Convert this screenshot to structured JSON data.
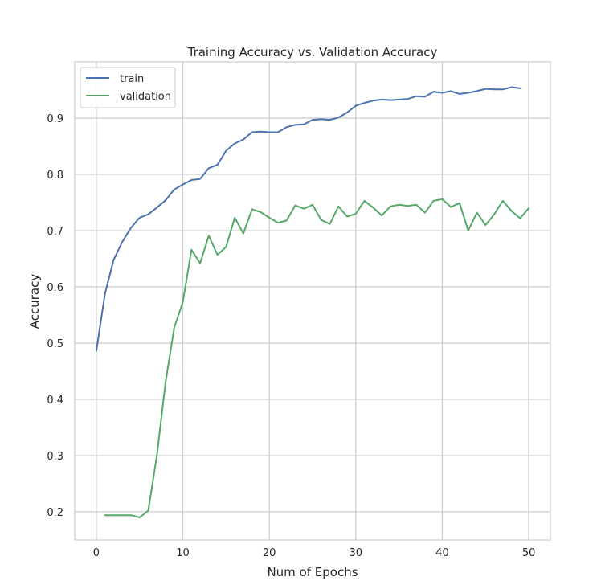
{
  "chart_data": {
    "type": "line",
    "title": "Training Accuracy vs. Validation Accuracy",
    "xlabel": "Num of Epochs",
    "ylabel": "Accuracy",
    "xlim": [
      -2.5,
      52.5
    ],
    "ylim": [
      0.15,
      1.0
    ],
    "xticks": [
      0,
      10,
      20,
      30,
      40,
      50
    ],
    "yticks": [
      0.2,
      0.3,
      0.4,
      0.5,
      0.6,
      0.7,
      0.8,
      0.9
    ],
    "xtick_labels": [
      "0",
      "10",
      "20",
      "30",
      "40",
      "50"
    ],
    "ytick_labels": [
      "0.2",
      "0.3",
      "0.4",
      "0.5",
      "0.6",
      "0.7",
      "0.8",
      "0.9"
    ],
    "grid": true,
    "legend_position": "top-left",
    "series": [
      {
        "name": "train",
        "color": "#4c72b0",
        "x": [
          0,
          1,
          2,
          3,
          4,
          5,
          6,
          7,
          8,
          9,
          10,
          11,
          12,
          13,
          14,
          15,
          16,
          17,
          18,
          19,
          20,
          21,
          22,
          23,
          24,
          25,
          26,
          27,
          28,
          29,
          30,
          31,
          32,
          33,
          34,
          35,
          36,
          37,
          38,
          39,
          40,
          41,
          42,
          43,
          44,
          45,
          46,
          47,
          48,
          49
        ],
        "values": [
          0.486,
          0.588,
          0.648,
          0.68,
          0.705,
          0.723,
          0.729,
          0.741,
          0.754,
          0.773,
          0.782,
          0.79,
          0.792,
          0.811,
          0.817,
          0.842,
          0.855,
          0.862,
          0.875,
          0.876,
          0.875,
          0.875,
          0.884,
          0.888,
          0.889,
          0.897,
          0.898,
          0.897,
          0.901,
          0.91,
          0.922,
          0.927,
          0.931,
          0.933,
          0.932,
          0.933,
          0.934,
          0.939,
          0.938,
          0.947,
          0.945,
          0.948,
          0.943,
          0.945,
          0.948,
          0.952,
          0.951,
          0.951,
          0.955,
          0.953
        ]
      },
      {
        "name": "validation",
        "color": "#55a868",
        "x": [
          1,
          2,
          3,
          4,
          5,
          6,
          7,
          8,
          9,
          10,
          11,
          12,
          13,
          14,
          15,
          16,
          17,
          18,
          19,
          20,
          21,
          22,
          23,
          24,
          25,
          26,
          27,
          28,
          29,
          30,
          31,
          32,
          33,
          34,
          35,
          36,
          37,
          38,
          39,
          40,
          41,
          42,
          43,
          44,
          45,
          46,
          47,
          48,
          49,
          50
        ],
        "values": [
          0.194,
          0.194,
          0.194,
          0.194,
          0.19,
          0.202,
          0.3,
          0.43,
          0.527,
          0.573,
          0.666,
          0.642,
          0.691,
          0.657,
          0.671,
          0.723,
          0.695,
          0.738,
          0.733,
          0.723,
          0.714,
          0.718,
          0.745,
          0.739,
          0.746,
          0.719,
          0.712,
          0.743,
          0.725,
          0.73,
          0.753,
          0.741,
          0.727,
          0.743,
          0.746,
          0.744,
          0.746,
          0.732,
          0.753,
          0.756,
          0.742,
          0.749,
          0.7,
          0.732,
          0.71,
          0.729,
          0.753,
          0.735,
          0.722,
          0.74
        ]
      }
    ]
  },
  "colors": {
    "grid": "#cccccc",
    "axes_edge": "#cccccc",
    "text": "#262626",
    "legend_edge": "#cccccc"
  }
}
